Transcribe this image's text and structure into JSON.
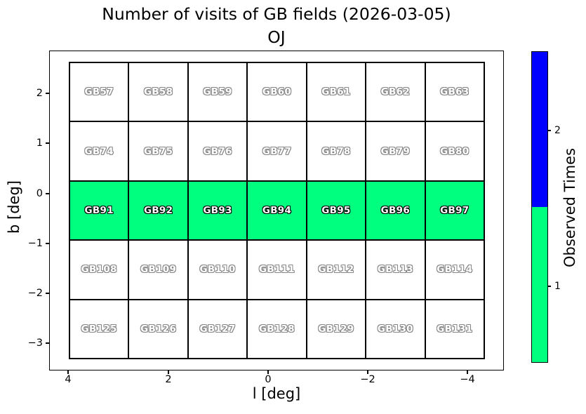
{
  "title": {
    "line1": "Number of visits of GB fields (2026-03-05)",
    "line2": "OJ"
  },
  "axes": {
    "xlabel": "l [deg]",
    "ylabel": "b [deg]",
    "xtick_labels": [
      "4",
      "2",
      "0",
      "−2",
      "−4"
    ],
    "ytick_labels": [
      "2",
      "1",
      "0",
      "−1",
      "−2",
      "−3"
    ]
  },
  "colorbar": {
    "label": "Observed Times",
    "tick_labels": [
      "2",
      "1"
    ],
    "segments": [
      {
        "name": "observed-times-2",
        "color": "#0000ff"
      },
      {
        "name": "observed-times-1",
        "color": "#00ff7f"
      }
    ]
  },
  "fields": {
    "rows": [
      {
        "labels": [
          "GB57",
          "GB58",
          "GB59",
          "GB60",
          "GB61",
          "GB62",
          "GB63"
        ],
        "visits": 0
      },
      {
        "labels": [
          "GB74",
          "GB75",
          "GB76",
          "GB77",
          "GB78",
          "GB79",
          "GB80"
        ],
        "visits": 0
      },
      {
        "labels": [
          "GB91",
          "GB92",
          "GB93",
          "GB94",
          "GB95",
          "GB96",
          "GB97"
        ],
        "visits": 1
      },
      {
        "labels": [
          "GB108",
          "GB109",
          "GB110",
          "GB111",
          "GB112",
          "GB113",
          "GB114"
        ],
        "visits": 0
      },
      {
        "labels": [
          "GB125",
          "GB126",
          "GB127",
          "GB128",
          "GB129",
          "GB130",
          "GB131"
        ],
        "visits": 0
      }
    ]
  },
  "colors": {
    "observed_fill": "#00ff7f",
    "unobserved_fill": "#ffffff",
    "cell_border": "#000000",
    "label_fill": "#ffffff",
    "label_outline_observed": "#000000",
    "label_outline_unobserved": "#888888"
  },
  "chart_data": {
    "type": "heatmap",
    "title": "Number of visits of GB fields (2026-03-05)",
    "subtitle": "OJ",
    "xlabel": "l [deg]",
    "ylabel": "b [deg]",
    "xticks": [
      4,
      2,
      0,
      -2,
      -4
    ],
    "yticks": [
      2,
      1,
      0,
      -1,
      -2,
      -3
    ],
    "x_axis_reversed": true,
    "grid_on": false,
    "grid_rows": [
      {
        "fields": [
          "GB57",
          "GB58",
          "GB59",
          "GB60",
          "GB61",
          "GB62",
          "GB63"
        ],
        "observed_times": [
          0,
          0,
          0,
          0,
          0,
          0,
          0
        ]
      },
      {
        "fields": [
          "GB74",
          "GB75",
          "GB76",
          "GB77",
          "GB78",
          "GB79",
          "GB80"
        ],
        "observed_times": [
          0,
          0,
          0,
          0,
          0,
          0,
          0
        ]
      },
      {
        "fields": [
          "GB91",
          "GB92",
          "GB93",
          "GB94",
          "GB95",
          "GB96",
          "GB97"
        ],
        "observed_times": [
          1,
          1,
          1,
          1,
          1,
          1,
          1
        ]
      },
      {
        "fields": [
          "GB108",
          "GB109",
          "GB110",
          "GB111",
          "GB112",
          "GB113",
          "GB114"
        ],
        "observed_times": [
          0,
          0,
          0,
          0,
          0,
          0,
          0
        ]
      },
      {
        "fields": [
          "GB125",
          "GB126",
          "GB127",
          "GB128",
          "GB129",
          "GB130",
          "GB131"
        ],
        "observed_times": [
          0,
          0,
          0,
          0,
          0,
          0,
          0
        ]
      }
    ],
    "colorbar": {
      "label": "Observed Times",
      "ticks": [
        1,
        2
      ],
      "colors": {
        "1": "#00ff7f",
        "2": "#0000ff"
      },
      "position": "right"
    }
  }
}
